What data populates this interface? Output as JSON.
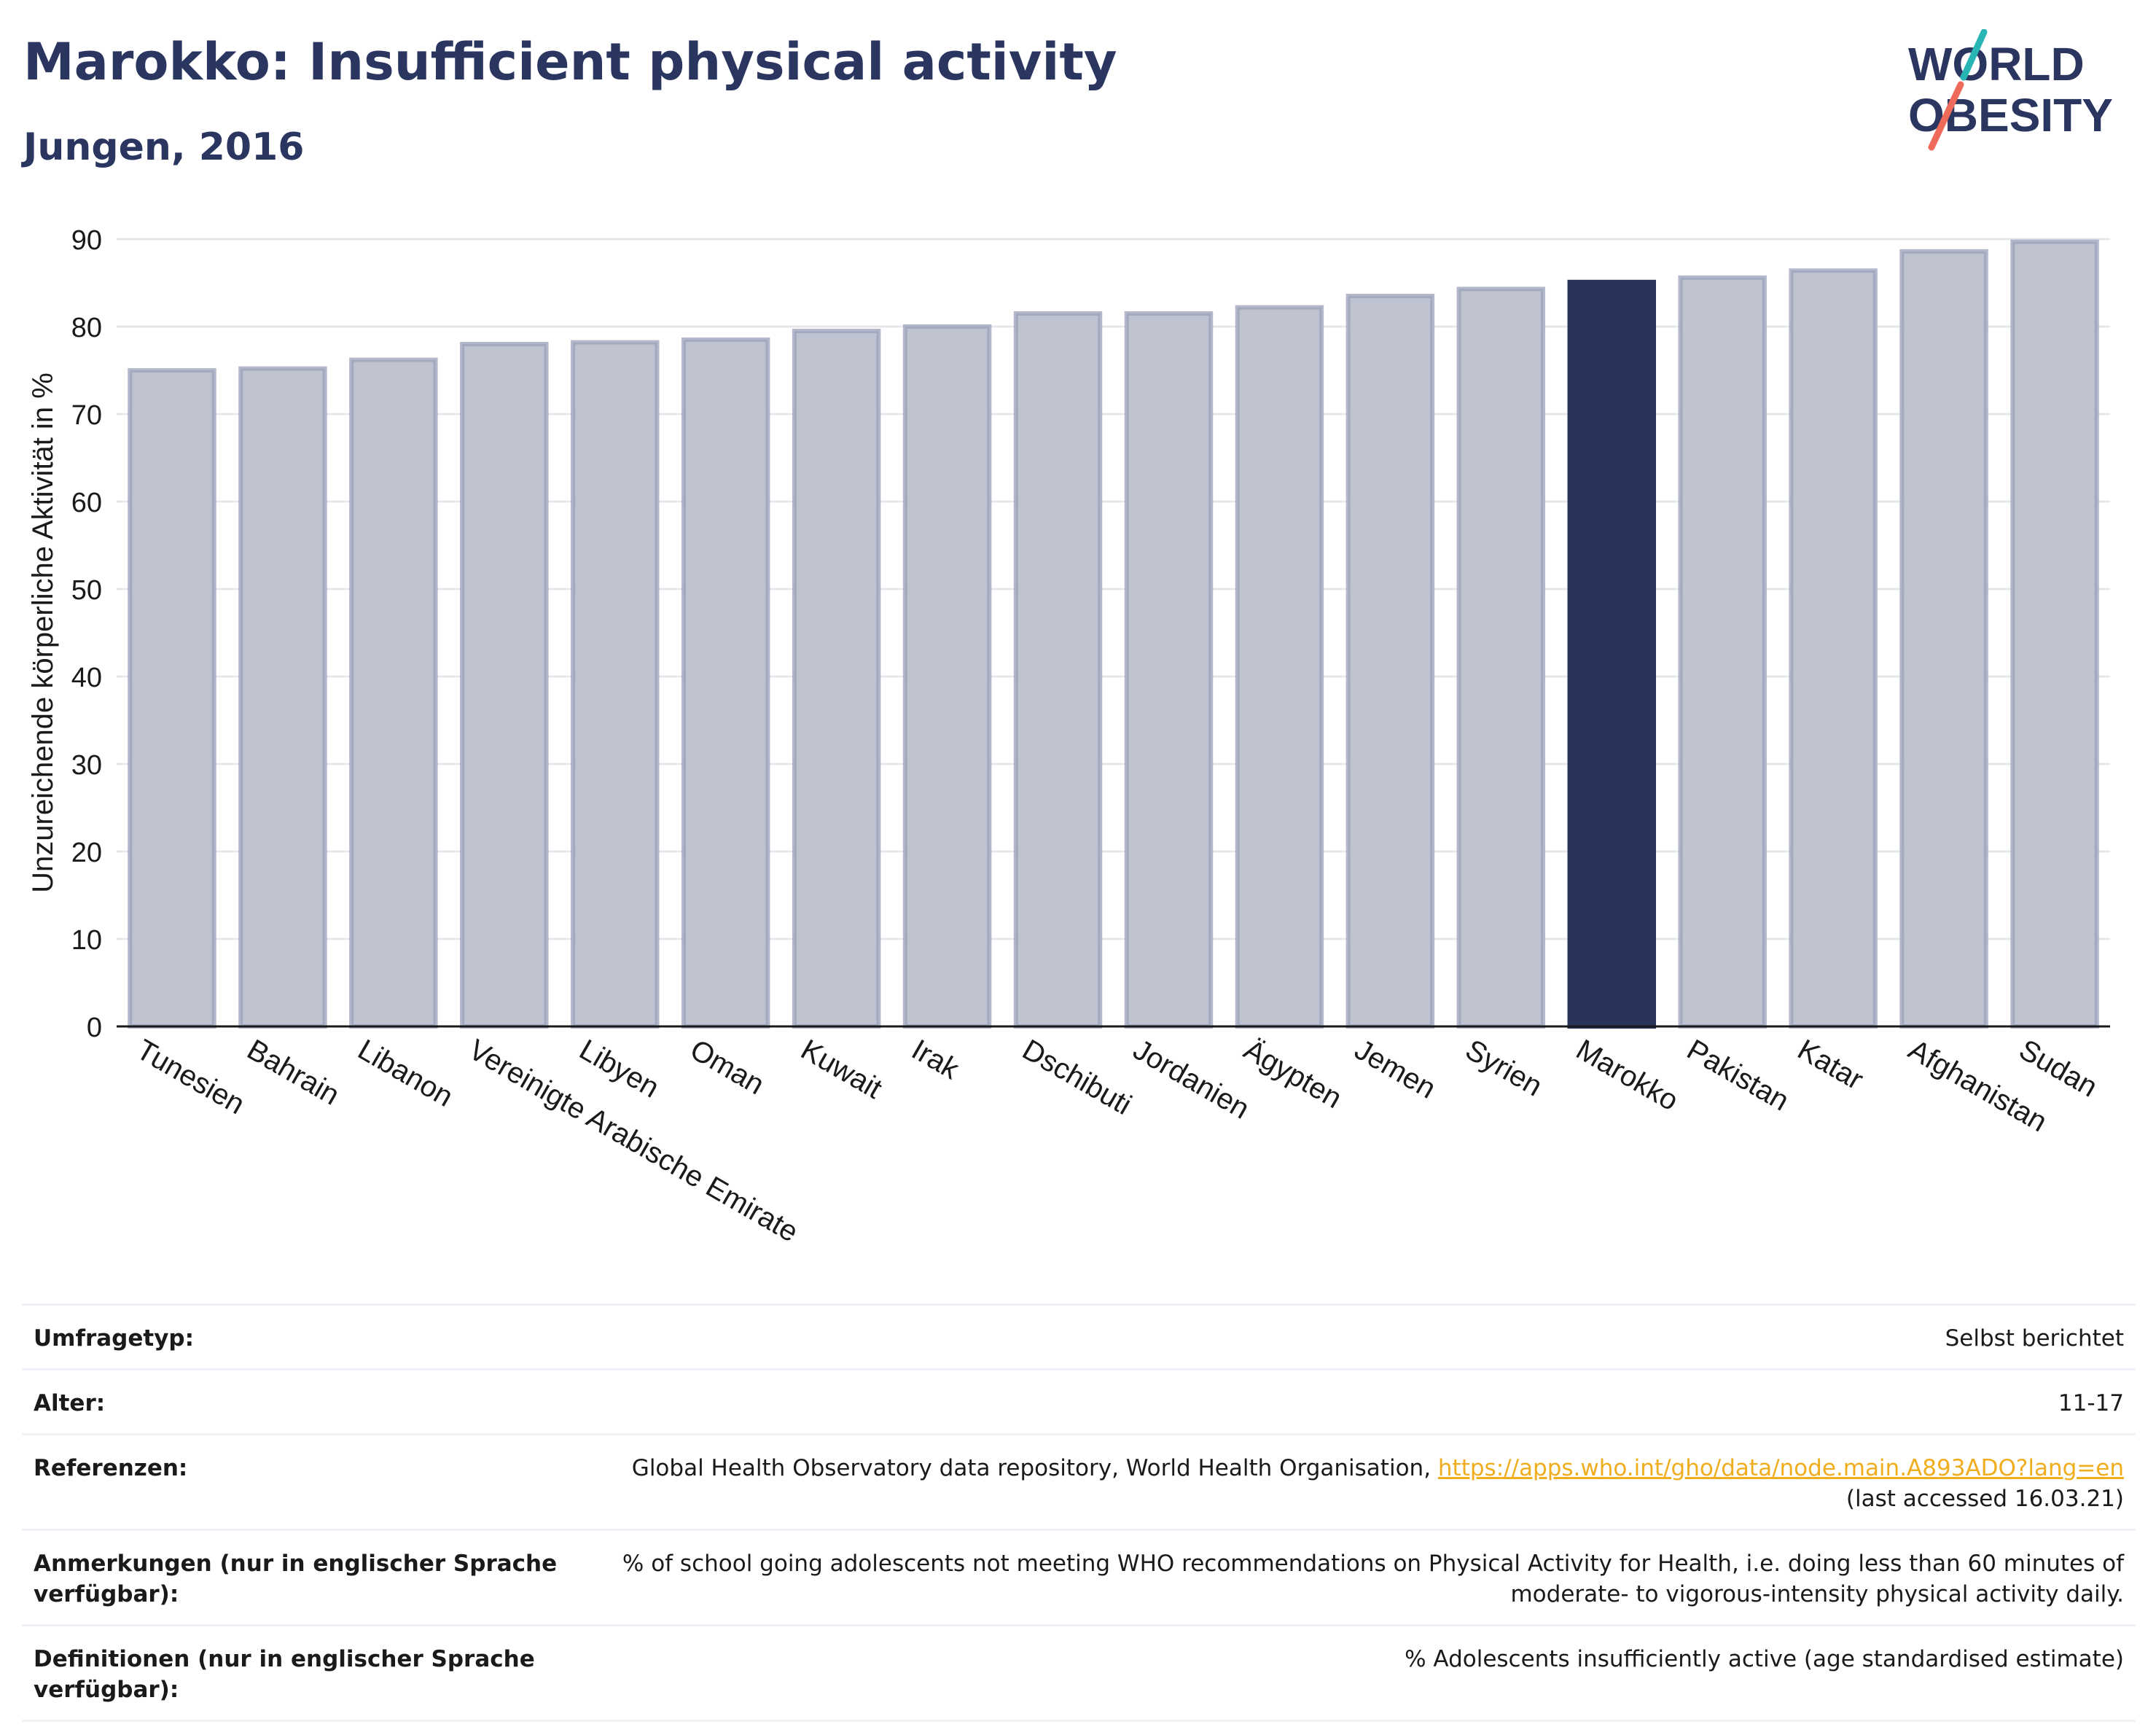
{
  "header": {
    "title": "Marokko: Insufficient physical activity",
    "subtitle": "Jungen, 2016"
  },
  "logo": {
    "line1": "WORLD",
    "line2": "OBESITY"
  },
  "colors": {
    "bar": "#bfc2cf",
    "bar_stroke": "#9aa0b8",
    "highlight": "#29335c",
    "grid": "#e6e8f0",
    "text": "#2a3560",
    "link": "#f0ad1e"
  },
  "chart_data": {
    "type": "bar",
    "ylabel": "Unzureichende körperliche Aktivität in %",
    "ylim": [
      0,
      90
    ],
    "yticks": [
      0,
      10,
      20,
      30,
      40,
      50,
      60,
      70,
      80,
      90
    ],
    "categories": [
      "Tunesien",
      "Bahrain",
      "Libanon",
      "Vereinigte Arabische Emirate",
      "Libyen",
      "Oman",
      "Kuwait",
      "Irak",
      "Dschibuti",
      "Jordanien",
      "Ägypten",
      "Jemen",
      "Syrien",
      "Marokko",
      "Pakistan",
      "Katar",
      "Afghanistan",
      "Sudan"
    ],
    "values": [
      75.0,
      75.2,
      76.2,
      78.0,
      78.2,
      78.5,
      79.5,
      80.0,
      81.5,
      81.5,
      82.2,
      83.5,
      84.3,
      85.1,
      85.6,
      86.4,
      88.6,
      89.7
    ],
    "highlight": "Marokko",
    "grid": true
  },
  "info": {
    "survey_label": "Umfragetyp:",
    "survey_value": "Selbst berichtet",
    "age_label": "Alter:",
    "age_value": "11-17",
    "ref_label": "Referenzen:",
    "ref_text": "Global Health Observatory data repository, World Health Organisation, ",
    "ref_link": "https://apps.who.int/gho/data/node.main.A893ADO?lang=en",
    "ref_accessed": "(last accessed 16.03.21)",
    "notes_label": "Anmerkungen (nur in englischer Sprache verfügbar):",
    "notes_value": "% of school going adolescents not meeting WHO recommendations on Physical Activity for Health, i.e. doing less than 60 minutes of moderate- to vigorous-intensity physical activity daily.",
    "def_label": "Definitionen (nur in englischer Sprache verfügbar):",
    "def_value": "% Adolescents insufficiently active (age standardised estimate)"
  }
}
